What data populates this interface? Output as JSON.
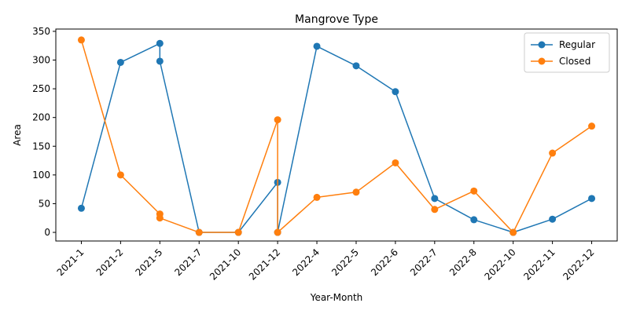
{
  "chart_data": {
    "type": "line",
    "title": "Mangrove Type",
    "xlabel": "Year-Month",
    "ylabel": "Area",
    "categories": [
      "2021-1",
      "2021-2",
      "2021-5",
      "2021-7",
      "2021-10",
      "2021-12",
      "2022-4",
      "2022-5",
      "2022-6",
      "2022-7",
      "2022-8",
      "2022-10",
      "2022-11",
      "2022-12"
    ],
    "ylim": [
      -15,
      354
    ],
    "yticks": [
      0,
      50,
      100,
      150,
      200,
      250,
      300,
      350
    ],
    "legend_position": "top-right",
    "grid": false,
    "series": [
      {
        "name": "Regular",
        "color": "#1f77b4",
        "points": [
          {
            "x": "2021-1",
            "y": 42
          },
          {
            "x": "2021-2",
            "y": 296
          },
          {
            "x": "2021-5",
            "y": 329
          },
          {
            "x": "2021-5",
            "y": 298
          },
          {
            "x": "2021-7",
            "y": 0
          },
          {
            "x": "2021-10",
            "y": 0
          },
          {
            "x": "2021-12",
            "y": 87
          },
          {
            "x": "2021-12",
            "y": 0
          },
          {
            "x": "2022-4",
            "y": 324
          },
          {
            "x": "2022-5",
            "y": 290
          },
          {
            "x": "2022-6",
            "y": 245
          },
          {
            "x": "2022-7",
            "y": 59
          },
          {
            "x": "2022-8",
            "y": 22
          },
          {
            "x": "2022-10",
            "y": 0
          },
          {
            "x": "2022-11",
            "y": 23
          },
          {
            "x": "2022-12",
            "y": 59
          }
        ]
      },
      {
        "name": "Closed",
        "color": "#ff7f0e",
        "points": [
          {
            "x": "2021-1",
            "y": 335
          },
          {
            "x": "2021-2",
            "y": 100
          },
          {
            "x": "2021-5",
            "y": 32
          },
          {
            "x": "2021-5",
            "y": 25
          },
          {
            "x": "2021-7",
            "y": 0
          },
          {
            "x": "2021-10",
            "y": 0
          },
          {
            "x": "2021-12",
            "y": 196
          },
          {
            "x": "2021-12",
            "y": 0
          },
          {
            "x": "2022-4",
            "y": 61
          },
          {
            "x": "2022-5",
            "y": 70
          },
          {
            "x": "2022-6",
            "y": 121
          },
          {
            "x": "2022-7",
            "y": 40
          },
          {
            "x": "2022-8",
            "y": 72
          },
          {
            "x": "2022-10",
            "y": 0
          },
          {
            "x": "2022-11",
            "y": 138
          },
          {
            "x": "2022-12",
            "y": 185
          }
        ]
      }
    ]
  }
}
